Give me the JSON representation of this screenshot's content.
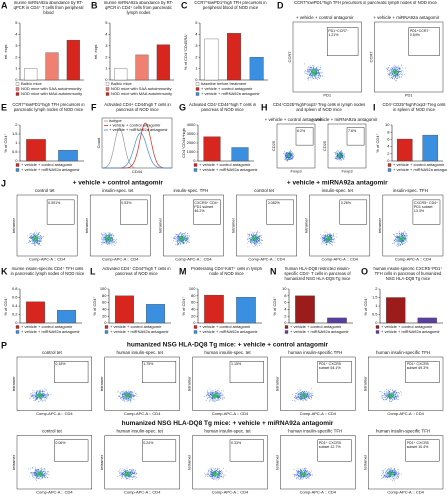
{
  "chart_data": [
    {
      "type": "bar",
      "label": "A",
      "title": "murine miRNA92a abundance by RT-qPCR in CD4⁺ T cells from peripheral blood",
      "ylabel": "rel. expr.",
      "ylim": [
        0,
        5
      ],
      "yticks": [
        0,
        1,
        2,
        3,
        4,
        5
      ],
      "series": [
        {
          "name": "Balb/c mice",
          "color": "#ffffff",
          "values": [
            1
          ]
        },
        {
          "name": "NOD mice with SAA autoimmunity",
          "color": "#f08070",
          "values": [
            2.4
          ]
        },
        {
          "name": "NOD mice with MAA autoimmunity",
          "color": "#d7261e",
          "values": [
            3.5
          ]
        }
      ]
    },
    {
      "type": "bar",
      "label": "B",
      "title": "murine miRNA92a abundance by RT-qPCR in CD4⁺ cells from pancreatic lymph nodes",
      "ylabel": "rel. expr.",
      "ylim": [
        0,
        5
      ],
      "yticks": [
        0,
        1,
        2,
        3,
        4,
        5
      ],
      "series": [
        {
          "name": "Balb/c mice",
          "color": "#ffffff",
          "values": [
            1
          ]
        },
        {
          "name": "NOD mice with SAA autoimmunity",
          "color": "#f08070",
          "values": [
            2.2
          ]
        },
        {
          "name": "NOD mice with MAA autoimmunity",
          "color": "#d7261e",
          "values": [
            3.1
          ]
        }
      ]
    },
    {
      "type": "bar",
      "label": "C",
      "title": "CCR7^lowPD1^high TFH precursors in peripheral blood of NOD mice",
      "ylabel": "% of CD4⁺CD45RA⁻",
      "ylim": [
        0,
        5
      ],
      "yticks": [
        0,
        1,
        2,
        3,
        4,
        5
      ],
      "series": [
        {
          "name": "baseline before treatment",
          "color": "#ffffff",
          "values": [
            3.6
          ]
        },
        {
          "name": "+ vehicle + control antagomir",
          "color": "#d7261e",
          "values": [
            4.1
          ]
        },
        {
          "name": "+ vehicle + miRNA92a antagomir",
          "color": "#3b8fe0",
          "values": [
            2.0
          ]
        }
      ]
    },
    {
      "type": "bar",
      "label": "E",
      "title": "CCR7^lowPD1^high TFH precursors in pancreatic lymph nodes of NOD mice",
      "ylabel": "% of CD4⁺",
      "ylim": [
        0,
        2
      ],
      "yticks": [
        0,
        0.5,
        1,
        1.5,
        2
      ],
      "series": [
        {
          "name": "+ vehicle + control antagomir",
          "color": "#d7261e",
          "values": [
            1.2
          ]
        },
        {
          "name": "+ vehicle + miRNA92a antagomir",
          "color": "#3b8fe0",
          "values": [
            0.6
          ]
        }
      ]
    },
    {
      "type": "bar",
      "label": "G",
      "title": "Activated CD4⁺CD44^high T cells in pancreas of NOD mice",
      "ylabel": "CD4⁺CD44^high",
      "ylim": [
        0,
        4000
      ],
      "yticks": [
        0,
        1000,
        2000,
        3000,
        4000
      ],
      "series": [
        {
          "name": "+ vehicle + control antagomir",
          "color": "#d7261e",
          "values": [
            2700
          ]
        },
        {
          "name": "+ vehicle + miRNA92a antagomir",
          "color": "#3b8fe0",
          "values": [
            1500
          ]
        }
      ]
    },
    {
      "type": "bar",
      "label": "I",
      "title": "CD4⁺CD25^highFoxp3⁺Treg cells in spleen of NOD mice",
      "ylabel": "% of CD4⁺",
      "ylim": [
        0,
        10
      ],
      "yticks": [
        0,
        2,
        4,
        6,
        8,
        10
      ],
      "series": [
        {
          "name": "+ vehicle + control antagomir",
          "color": "#d7261e",
          "values": [
            6.1
          ]
        },
        {
          "name": "+ vehicle + miRNA92a antagomir",
          "color": "#3b8fe0",
          "values": [
            7.2
          ]
        }
      ]
    },
    {
      "type": "bar",
      "label": "K",
      "title": "murine insulin-specific CD4⁺ TFH cells in pancreatic lymph nodes of NOD mice",
      "ylabel": "% of CD4⁺",
      "ylim": [
        0,
        0.8
      ],
      "yticks": [
        0,
        0.2,
        0.4,
        0.6,
        0.8
      ],
      "series": [
        {
          "name": "+ vehicle + control antagomir",
          "color": "#d7261e",
          "values": [
            0.5
          ]
        },
        {
          "name": "+ vehicle + miRNA92a antagomir",
          "color": "#3b8fe0",
          "values": [
            0.3
          ]
        }
      ]
    },
    {
      "type": "bar",
      "label": "L",
      "title": "Activated CD4⁺ CD44^high T cells in pancreas of NOD mice",
      "ylabel": "% of CD4⁺",
      "ylim": [
        0,
        100
      ],
      "yticks": [
        0,
        20,
        40,
        60,
        80,
        100
      ],
      "series": [
        {
          "name": "+ vehicle + control antagomir",
          "color": "#d7261e",
          "values": [
            80
          ]
        },
        {
          "name": "+ vehicle + miRNA92a antagomir",
          "color": "#3b8fe0",
          "values": [
            55
          ]
        }
      ]
    },
    {
      "type": "bar",
      "label": "M",
      "title": "Proliferating CD4⁺Ki67⁺ cells in lymph node of NOD mice",
      "ylabel": "% of CD4⁺",
      "ylim": [
        0,
        100
      ],
      "yticks": [
        0,
        20,
        40,
        60,
        80,
        100
      ],
      "series": [
        {
          "name": "+ vehicle + control antagomir",
          "color": "#d7261e",
          "values": [
            82
          ]
        },
        {
          "name": "+ vehicle + miRNA92a antagomir",
          "color": "#3b8fe0",
          "values": [
            76
          ]
        }
      ]
    },
    {
      "type": "bar",
      "label": "N",
      "title": "human HLA-DQ8 restricted insulin-specific CD4⁺ T cells in pancreas of humanized NSG HLA-DQ8 Tg mice",
      "ylabel": "% of CD4⁺",
      "ylim": [
        0,
        10
      ],
      "yticks": [
        0,
        2,
        4,
        6,
        8,
        10
      ],
      "series": [
        {
          "name": "+ vehicle + control antagomir",
          "color": "#9c1b1b",
          "values": [
            8
          ]
        },
        {
          "name": "+ vehicle + miRNA92a antagomir",
          "color": "#5b3fa0",
          "values": [
            1.5
          ]
        }
      ]
    },
    {
      "type": "bar",
      "label": "O",
      "title": "human insulin-specific CXCR5⁺PD1⁺ TFH cells in pancreas of humanized NSG HLA-DQ8 Tg mice",
      "ylabel": "% of CD4⁺",
      "ylim": [
        0,
        2
      ],
      "yticks": [
        0,
        0.5,
        1,
        1.5,
        2
      ],
      "series": [
        {
          "name": "+ vehicle + control antagomir",
          "color": "#9c1b1b",
          "values": [
            1.5
          ]
        },
        {
          "name": "+ vehicle + miRNA92a antagomir",
          "color": "#5b3fa0",
          "values": [
            0.3
          ]
        }
      ]
    }
  ],
  "flow_panels": [
    {
      "label": "D",
      "title": "CCR7^lowPD1^high TFH precursors in pancreatic lymph nodes of NOD mice",
      "x_label": "PD1",
      "y_label": "CCR7",
      "groups": [
        {
          "plots": [
            {
              "title": "+ vehicle + control antagomir",
              "gate": "PD1⁺CCR7⁻ 1.21%"
            },
            {
              "title": "+ vehicle + miRNA92a antagomir",
              "gate": "PD1⁺CCR7⁻ 0.54%"
            }
          ]
        }
      ]
    },
    {
      "label": "H",
      "title": "CD4⁺CD25^highFoxp3⁺Treg cells in lymph nodes and spleen of NOD mice",
      "x_label": "Foxp3",
      "y_label": "CD25",
      "groups": [
        {
          "plots": [
            {
              "title": "+ vehicle + control antagomir",
              "gate": "6.2%"
            },
            {
              "title": "+ vehicle + miRNA92a antagomir",
              "gate": "7.6%"
            }
          ]
        }
      ]
    },
    {
      "label": "J",
      "x_label": "Comp-APC-A :: CD4",
      "y_label": "tetramer",
      "groups": [
        {
          "title": "+ vehicle + control antagomir",
          "plots": [
            {
              "title": "control tet",
              "gate": "0.091%"
            },
            {
              "title": "insulin-spec. tet",
              "gate": "0.53%"
            },
            {
              "title": "insulin-spec. TFH",
              "gate": "CXCR5⁺ CD4⁺ PD1 subset 46.2%"
            }
          ]
        },
        {
          "title": "+ vehicle + miRNA92a antagomir",
          "plots": [
            {
              "title": "control tet",
              "gate": "0.082%"
            },
            {
              "title": "insulin-spec. tet",
              "gate": "0.26%"
            },
            {
              "title": "insulin-spec. TFH",
              "gate": "CXCR5⁺ CD4⁺ PD1 subset 13.3%"
            }
          ]
        }
      ]
    },
    {
      "label": "P",
      "x_label": "Comp-APC-A :: CD4",
      "y_label": "tetramer",
      "groups": [
        {
          "title": "humanized NSG HLA-DQ8 Tg mice: + vehicle + control antagomir",
          "plots": [
            {
              "title": "control tet",
              "gate": "0.18%"
            },
            {
              "title": "human insulin-spec. tet",
              "gate": "1.75%"
            },
            {
              "title": "human insulin-spec. tet",
              "gate": "1.15%"
            },
            {
              "title": "human insulin-specific TFH",
              "gate": "PD1⁺ CXCR5 subset 54.1%"
            },
            {
              "title": "human insulin-specific TFH",
              "gate": "PD1⁺ CXCR5 subset 49.3%"
            }
          ]
        },
        {
          "title": "humanized NSG HLA-DQ8 Tg mice: + vehicle + miRNA92a antagomir",
          "plots": [
            {
              "title": "control tet",
              "gate": "0.06%"
            },
            {
              "title": "human insulin-spec. tet",
              "gate": "0.24%"
            },
            {
              "title": "human insulin-spec. tet",
              "gate": "0.33%"
            },
            {
              "title": "human insulin-specific TFH",
              "gate": "PD1⁺ CXCR5 subset 12.7%"
            },
            {
              "title": "human insulin-specific TFH",
              "gate": "PD1⁺ CXCR5 subset 10.4%"
            }
          ]
        }
      ]
    }
  ],
  "histogram_panel": {
    "label": "F",
    "title": "Activated CD4+ CD44high T cells in pancreas of NOD mice",
    "x_label": "CD44",
    "y_label": "Count",
    "legend": [
      "isotype",
      "+ vehicle + control antagomir",
      "+ vehicle + miRNA92a antagomir"
    ]
  }
}
